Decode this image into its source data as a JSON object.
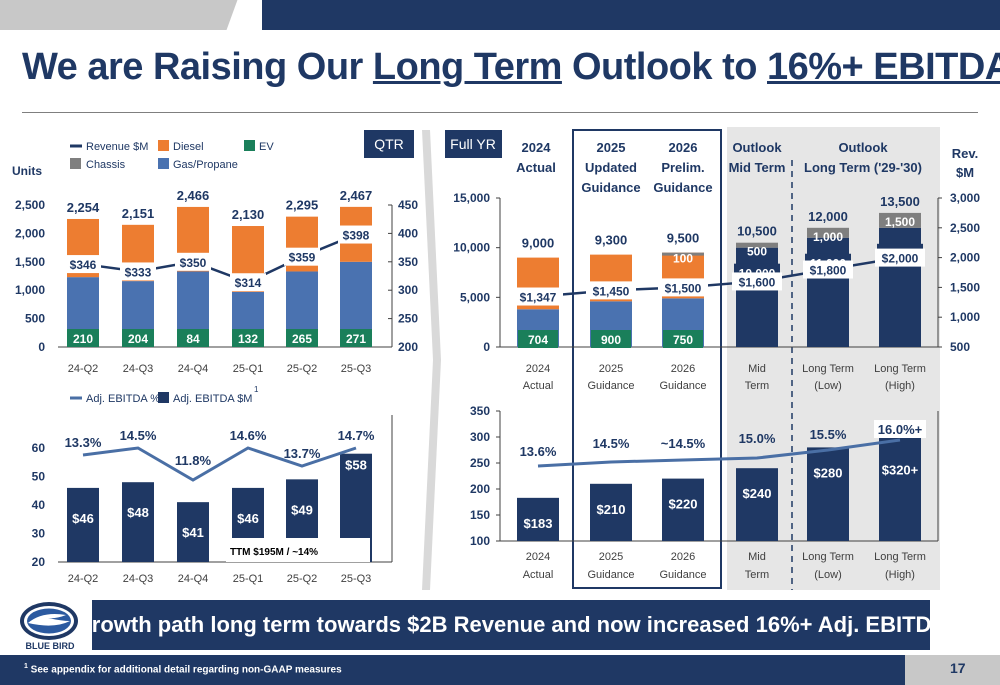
{
  "title": {
    "pre": "We are Raising Our ",
    "u1": "Long Term",
    "mid": " Outlook to ",
    "u2": "16%+ EBITDA"
  },
  "colors": {
    "navy": "#1f3864",
    "diesel": "#ed7d31",
    "gas": "#4a72b0",
    "ev": "#1a7f5a",
    "chassis": "#7f7f7f",
    "outlook_bg": "#e6e6e6",
    "line": "#4a6fa5"
  },
  "quarterly": {
    "badge": "QTR",
    "units_label": "Units",
    "legend": {
      "revenue": "Revenue $M",
      "diesel": "Diesel",
      "ev": "EV",
      "chassis": "Chassis",
      "gas": "Gas/Propane"
    },
    "categories": [
      "24-Q2",
      "24-Q3",
      "24-Q4",
      "25-Q1",
      "25-Q2",
      "25-Q3"
    ],
    "left_ticks": [
      "0",
      "500",
      "1,000",
      "1,500",
      "2,000",
      "2,500"
    ],
    "right_ticks": [
      "200",
      "250",
      "300",
      "350",
      "400",
      "450"
    ],
    "ebitda_legend": {
      "pct": "Adj. EBITDA %",
      "usd": "Adj. EBITDA $M",
      "sup": "1"
    },
    "ebitda_left_ticks": [
      "20",
      "30",
      "40",
      "50",
      "60"
    ],
    "ttm_note": "TTM $195M / ~14%"
  },
  "full_year": {
    "badge": "Full YR",
    "headers": [
      {
        "l1": "2024",
        "l2": "Actual",
        "l3": ""
      },
      {
        "l1": "2025",
        "l2": "Updated",
        "l3": "Guidance"
      },
      {
        "l1": "2026",
        "l2": "Prelim.",
        "l3": "Guidance"
      },
      {
        "l1": "Outlook",
        "l2": "Mid Term",
        "l3": ""
      },
      {
        "l1": "Outlook",
        "l2": "Long Term ('29-'30)",
        "l3": ""
      }
    ],
    "rev_header": {
      "l1": "Rev.",
      "l2": "$M"
    },
    "units_ticks": [
      "0",
      "5,000",
      "10,000",
      "15,000"
    ],
    "rev_ticks": [
      "500",
      "1,000",
      "1,500",
      "2,000",
      "2,500",
      "3,000"
    ],
    "ebitda_ticks": [
      "100",
      "150",
      "200",
      "250",
      "300",
      "350"
    ],
    "categories": [
      {
        "l1": "2024",
        "l2": "Actual"
      },
      {
        "l1": "2025",
        "l2": "Guidance"
      },
      {
        "l1": "2026",
        "l2": "Guidance"
      },
      {
        "l1": "Mid",
        "l2": "Term"
      },
      {
        "l1": "Long Term",
        "l2": "(Low)"
      },
      {
        "l1": "Long Term",
        "l2": "(High)"
      }
    ]
  },
  "chart_data": [
    {
      "type": "bar",
      "title": "QTR",
      "ylabel": "Units",
      "categories": [
        "24-Q2",
        "24-Q3",
        "24-Q4",
        "25-Q1",
        "25-Q2",
        "25-Q3"
      ],
      "ylim": [
        0,
        2500
      ],
      "series": [
        {
          "name": "Gas/Propane",
          "values": [
            1230,
            1160,
            1330,
            970,
            1330,
            1500
          ]
        },
        {
          "name": "EV",
          "values": [
            210,
            204,
            84,
            132,
            265,
            271
          ]
        },
        {
          "name": "Diesel",
          "values": [
            1024,
            991,
            1136,
            1160,
            965,
            967
          ]
        },
        {
          "name": "Revenue $M",
          "values": [
            346,
            333,
            350,
            314,
            359,
            398
          ],
          "axis": "right",
          "ylim": [
            200,
            450
          ]
        }
      ],
      "totals": [
        2254,
        2151,
        2466,
        2130,
        2295,
        2467
      ],
      "total_labels": [
        "2,254",
        "2,151",
        "2,466",
        "2,130",
        "2,295",
        "2,467"
      ],
      "revenue_labels": [
        "$346",
        "$333",
        "$350",
        "$314",
        "$359",
        "$398"
      ],
      "ev_labels": [
        "210",
        "204",
        "84",
        "132",
        "265",
        "271"
      ]
    },
    {
      "type": "bar",
      "title": "",
      "categories": [
        "24-Q2",
        "24-Q3",
        "24-Q4",
        "25-Q1",
        "25-Q2",
        "25-Q3"
      ],
      "ylim": [
        20,
        60
      ],
      "series": [
        {
          "name": "Adj. EBITDA $M",
          "values": [
            46,
            48,
            41,
            46,
            49,
            58
          ]
        },
        {
          "name": "Adj. EBITDA %",
          "values": [
            13.3,
            14.5,
            11.8,
            14.6,
            13.7,
            14.7
          ]
        }
      ],
      "usd_labels": [
        "$46",
        "$48",
        "$41",
        "$46",
        "$49",
        "$58"
      ],
      "pct_labels": [
        "13.3%",
        "14.5%",
        "11.8%",
        "14.6%",
        "13.7%",
        "14.7%"
      ]
    },
    {
      "type": "bar",
      "title": "Full YR",
      "categories": [
        "2024 Actual",
        "2025 Guidance",
        "2026 Guidance",
        "Mid Term",
        "Long Term (Low)",
        "Long Term (High)"
      ],
      "ylim": [
        0,
        15000
      ],
      "series": [
        {
          "name": "Buses",
          "values": [
            9000,
            9300,
            9500,
            null,
            null,
            null
          ]
        },
        {
          "name": "EV",
          "values": [
            704,
            900,
            750,
            null,
            null,
            null
          ]
        },
        {
          "name": "Units",
          "values": [
            null,
            null,
            null,
            10500,
            12000,
            13500
          ]
        },
        {
          "name": "Chassis",
          "values": [
            null,
            null,
            100,
            500,
            1000,
            1500
          ]
        },
        {
          "name": "Revenue $M",
          "values": [
            1347,
            1450,
            1500,
            1600,
            1800,
            2000
          ],
          "axis": "right",
          "ylim": [
            500,
            3000
          ]
        }
      ],
      "unit_labels": [
        "9,000",
        "9,300",
        "9,500",
        "10,500",
        "12,000",
        "13,500"
      ],
      "ev_labels": [
        "704",
        "900",
        "750"
      ],
      "chassis_labels": [
        "100",
        "500",
        "1,000",
        "1,500"
      ],
      "bus_labels": [
        "10,000",
        "11,000",
        "12,000"
      ],
      "revenue_labels": [
        "$1,347",
        "$1,450",
        "$1,500",
        "$1,600",
        "$1,800",
        "$2,000"
      ]
    },
    {
      "type": "bar",
      "title": "",
      "categories": [
        "2024 Actual",
        "2025 Guidance",
        "2026 Guidance",
        "Mid Term",
        "Long Term (Low)",
        "Long Term (High)"
      ],
      "ylim": [
        100,
        350
      ],
      "series": [
        {
          "name": "Adj. EBITDA $M",
          "values": [
            183,
            210,
            220,
            240,
            280,
            320
          ]
        },
        {
          "name": "Adj. EBITDA %",
          "values": [
            13.6,
            14.5,
            14.5,
            15.0,
            15.5,
            16.0
          ]
        }
      ],
      "usd_labels": [
        "$183",
        "$210",
        "$220",
        "$240",
        "$280",
        "$320+"
      ],
      "pct_labels": [
        "13.6%",
        "14.5%",
        "~14.5%",
        "15.0%",
        "15.5%",
        "16.0%+"
      ]
    }
  ],
  "banner": "Growth path long term towards $2B Revenue and now increased 16%+ Adj. EBITDA",
  "logo_text": "BLUE BIRD",
  "footnote": {
    "sup": "1",
    "text": " See appendix for additional detail regarding non-GAAP measures"
  },
  "page_number": "17"
}
